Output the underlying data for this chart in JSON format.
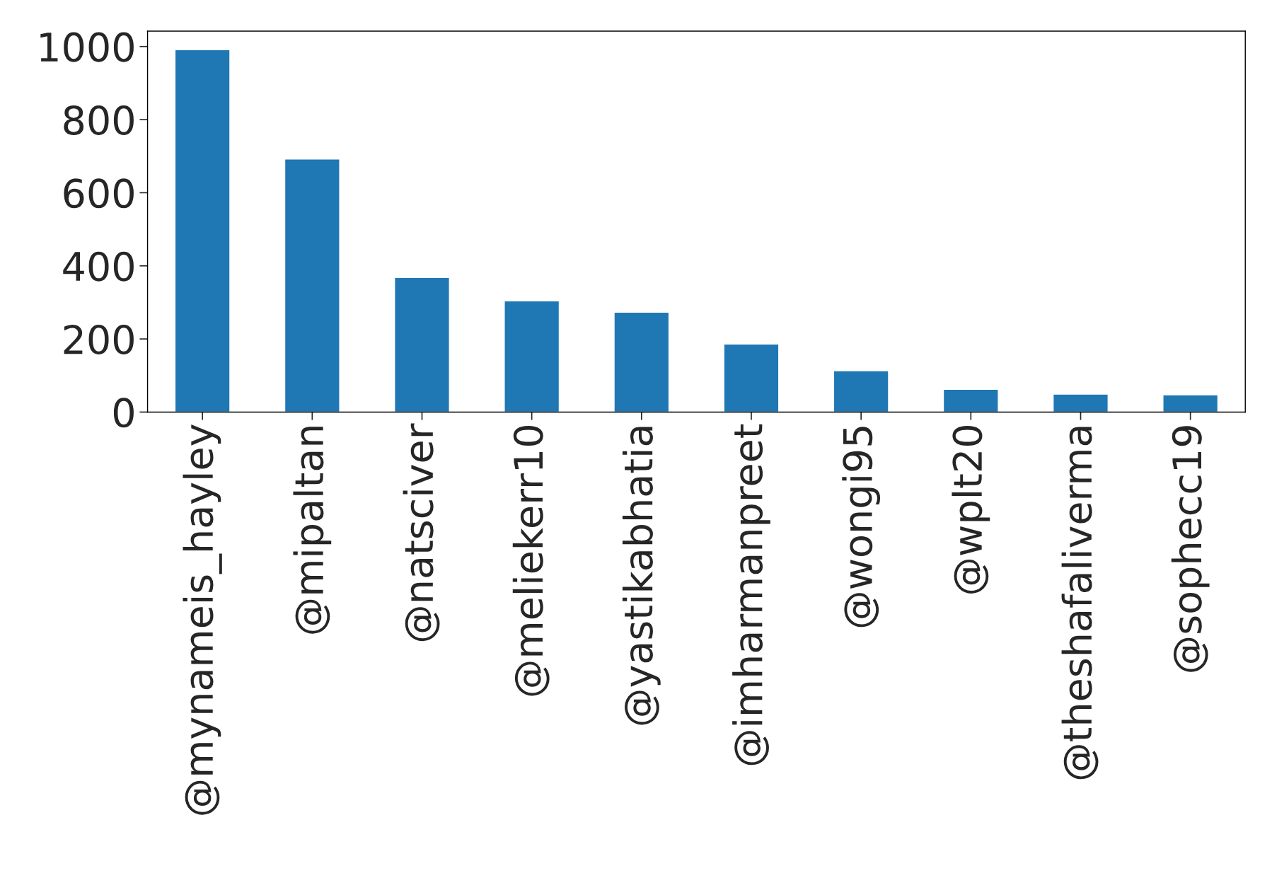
{
  "chart_data": {
    "type": "bar",
    "categories": [
      "@mynameis_hayley",
      "@mipaltan",
      "@natsciver",
      "@meliekerr10",
      "@yastikabhatia",
      "@imharmanpreet",
      "@wongi95",
      "@wplt20",
      "@theshafaliverma",
      "@sophecc19"
    ],
    "values": [
      991,
      692,
      368,
      304,
      273,
      186,
      113,
      62,
      49,
      47
    ],
    "color": "#1f77b4",
    "ylim": [
      0,
      1042
    ],
    "yticks": [
      0,
      200,
      400,
      600,
      800,
      1000
    ],
    "grid": false,
    "legend": false
  }
}
